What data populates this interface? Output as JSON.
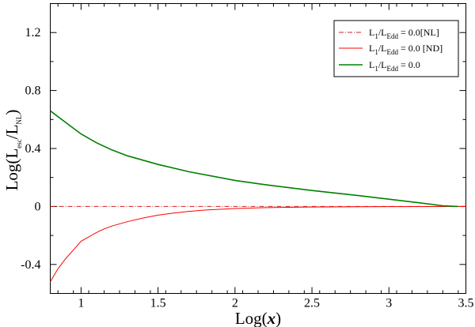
{
  "chart_data": {
    "type": "line",
    "title": "",
    "xlabel": {
      "prefix": "Log(",
      "var": "x",
      "suffix": ")"
    },
    "ylabel": {
      "prefix": "Log(L",
      "sub1": "esc",
      "mid": "/L",
      "sub2": "NL",
      "suffix": ")"
    },
    "xlim": [
      0.8,
      3.5
    ],
    "ylim": [
      -0.6,
      1.4
    ],
    "x_ticks": [
      1,
      1.5,
      2,
      2.5,
      3,
      3.5
    ],
    "x_tick_labels": [
      "1",
      "1.5",
      "2",
      "2.5",
      "3",
      "3.5"
    ],
    "y_ticks": [
      -0.4,
      0,
      0.4,
      0.8,
      1.2
    ],
    "y_tick_labels": [
      "-0.4",
      "0",
      "0.4",
      "0.8",
      "1.2"
    ],
    "grid": false,
    "legend_position": "top-right",
    "series": [
      {
        "legend": {
          "pre": "L",
          "s1": "1",
          "mid": "/L",
          "s2": "Edd",
          "post": " = 0.0[NL]"
        },
        "color": "#d22020",
        "style": "dashdot",
        "x": [
          0.8,
          3.5
        ],
        "y": [
          0.0,
          0.0
        ]
      },
      {
        "legend": {
          "pre": "L",
          "s1": "1",
          "mid": "/L",
          "s2": "Edd",
          "post": " = 0.0 [ND]"
        },
        "color": "#ff0000",
        "style": "solid",
        "x": [
          0.8,
          0.85,
          0.9,
          0.95,
          1.0,
          1.05,
          1.1,
          1.15,
          1.2,
          1.3,
          1.4,
          1.5,
          1.6,
          1.7,
          1.8,
          2.0,
          2.2,
          2.5,
          2.8,
          3.0,
          3.5
        ],
        "y": [
          -0.52,
          -0.43,
          -0.36,
          -0.3,
          -0.24,
          -0.21,
          -0.18,
          -0.155,
          -0.135,
          -0.105,
          -0.08,
          -0.06,
          -0.045,
          -0.034,
          -0.025,
          -0.014,
          -0.008,
          -0.004,
          -0.002,
          -0.001,
          0.0
        ]
      },
      {
        "legend": {
          "pre": "L",
          "s1": "1",
          "mid": "/L",
          "s2": "Edd",
          "post": " = 0.0"
        },
        "color": "#008000",
        "style": "solid",
        "x": [
          0.8,
          0.9,
          1.0,
          1.1,
          1.2,
          1.3,
          1.5,
          1.7,
          2.0,
          2.2,
          2.5,
          2.8,
          3.0,
          3.2,
          3.35,
          3.45
        ],
        "y": [
          0.66,
          0.58,
          0.5,
          0.44,
          0.39,
          0.35,
          0.29,
          0.24,
          0.18,
          0.15,
          0.11,
          0.075,
          0.05,
          0.025,
          0.005,
          0.0
        ]
      }
    ]
  }
}
